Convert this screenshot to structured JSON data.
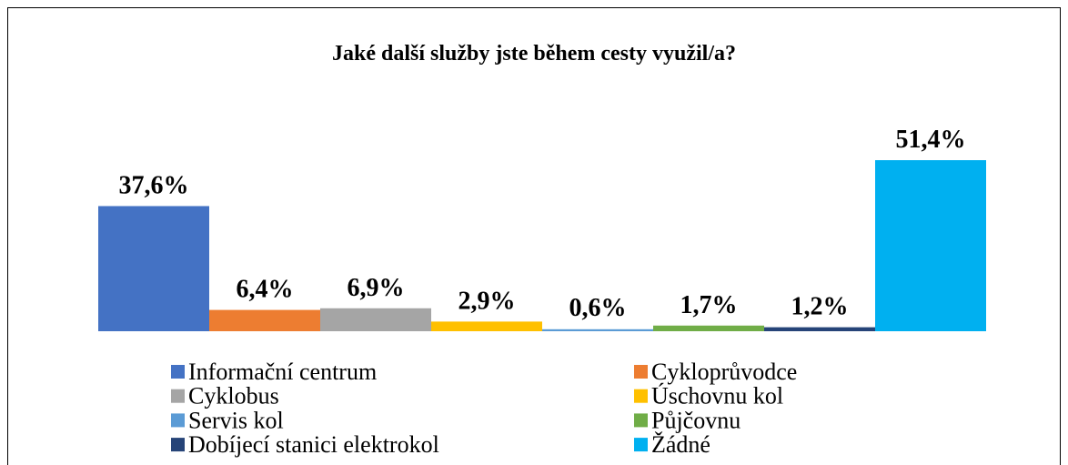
{
  "chart_data": {
    "type": "bar",
    "title": "Jaké další služby jste během cesty využil/a?",
    "categories": [
      null
    ],
    "series": [
      {
        "name": "Informační centrum",
        "color": "#4472c4",
        "values": [
          37.6
        ],
        "value_labels": [
          "37,6%"
        ]
      },
      {
        "name": "Cykloprůvodce",
        "color": "#ed7d31",
        "values": [
          6.4
        ],
        "value_labels": [
          "6,4%"
        ]
      },
      {
        "name": "Cyklobus",
        "color": "#a5a5a5",
        "values": [
          6.9
        ],
        "value_labels": [
          "6,9%"
        ]
      },
      {
        "name": "Úschovnu kol",
        "color": "#ffc000",
        "values": [
          2.9
        ],
        "value_labels": [
          "2,9%"
        ]
      },
      {
        "name": "Servis kol",
        "color": "#5b9bd5",
        "values": [
          0.6
        ],
        "value_labels": [
          "0,6%"
        ]
      },
      {
        "name": "Půjčovnu",
        "color": "#70ad47",
        "values": [
          1.7
        ],
        "value_labels": [
          "1,7%"
        ]
      },
      {
        "name": "Dobíjecí stanici elektrokol",
        "color": "#264478",
        "values": [
          1.2
        ],
        "value_labels": [
          "1,2%"
        ]
      },
      {
        "name": "Žádné",
        "color": "#00b0f0",
        "values": [
          51.4
        ],
        "value_labels": [
          "51,4%"
        ]
      }
    ],
    "legend": "bottom"
  }
}
